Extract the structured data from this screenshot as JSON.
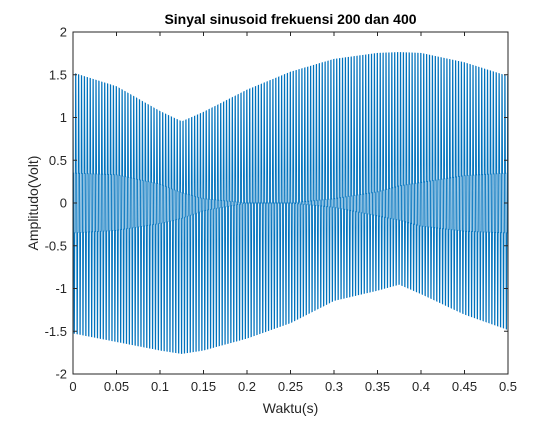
{
  "chart_data": {
    "type": "line",
    "title": "Sinyal sinusoid frekuensi 200 dan 400",
    "xlabel": "Waktu(s)",
    "ylabel": "Amplitudo(Volt)",
    "xlim": [
      0,
      0.5
    ],
    "ylim": [
      -2,
      2
    ],
    "xticks": [
      0,
      0.05,
      0.1,
      0.15,
      0.2,
      0.25,
      0.3,
      0.35,
      0.4,
      0.45,
      0.5
    ],
    "xtick_labels": [
      "0",
      "0.05",
      "0.1",
      "0.15",
      "0.2",
      "0.25",
      "0.3",
      "0.35",
      "0.4",
      "0.45",
      "0.5"
    ],
    "yticks": [
      -2,
      -1.5,
      -1,
      -0.5,
      0,
      0.5,
      1,
      1.5,
      2
    ],
    "ytick_labels": [
      "-2",
      "-1.5",
      "-1",
      "-0.5",
      "0",
      "0.5",
      "1",
      "1.5",
      "2"
    ],
    "grid": false,
    "legend": "none",
    "series": [
      {
        "color": "#0072bd",
        "x": [
          0,
          0.05,
          0.1,
          0.125,
          0.15,
          0.2,
          0.25,
          0.3,
          0.35,
          0.375,
          0.4,
          0.45,
          0.5
        ],
        "upper_envelope": [
          1.52,
          1.36,
          1.07,
          0.95,
          1.06,
          1.32,
          1.53,
          1.68,
          1.75,
          1.76,
          1.75,
          1.64,
          1.48
        ],
        "lower_envelope": [
          -1.52,
          -1.62,
          -1.72,
          -1.76,
          -1.72,
          -1.58,
          -1.4,
          -1.14,
          -1.02,
          -0.95,
          -1.06,
          -1.3,
          -1.48
        ],
        "inner_band_upper": [
          0.35,
          0.33,
          0.22,
          0.12,
          0.05,
          0.0,
          0.0,
          0.05,
          0.13,
          0.2,
          0.24,
          0.32,
          0.35
        ],
        "inner_band_lower": [
          -0.35,
          -0.32,
          -0.24,
          -0.18,
          -0.09,
          0.0,
          0.0,
          -0.05,
          -0.15,
          -0.2,
          -0.27,
          -0.33,
          -0.35
        ]
      }
    ]
  }
}
